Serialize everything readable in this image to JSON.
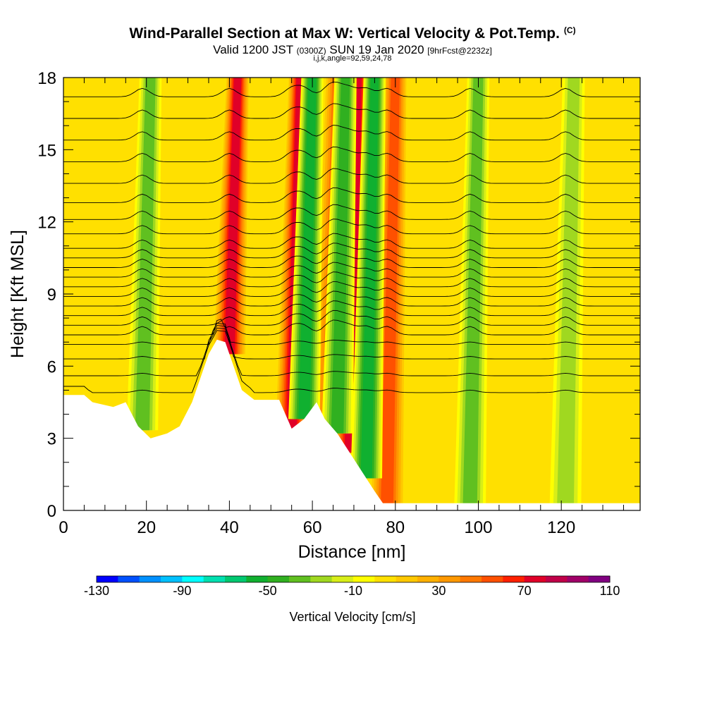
{
  "header": {
    "title": "Wind-Parallel Section at Max W: Vertical Velocity & Pot.Temp.",
    "copyright": "(C)",
    "valid_pre": "Valid 1200 JST",
    "valid_utc": "(0300Z)",
    "valid_date": "SUN 19 Jan 2020",
    "forecast": "[9hrFcst@2232z]",
    "params": "i,j,k,angle=92,59,24,78"
  },
  "chart_data": {
    "type": "heatmap",
    "xlabel": "Distance [nm]",
    "ylabel": "Height [Kft MSL]",
    "xlim": [
      0,
      139
    ],
    "ylim": [
      0,
      18
    ],
    "x_ticks": [
      0,
      20,
      40,
      60,
      80,
      100,
      120
    ],
    "y_ticks": [
      0,
      3,
      6,
      9,
      12,
      15,
      18
    ],
    "colorbar": {
      "label": "Vertical Velocity [cm/s]",
      "min": -130,
      "max": 110,
      "step": 10,
      "tick_labels": [
        "-130",
        "-90",
        "-50",
        "-10",
        "30",
        "70",
        "110"
      ],
      "colors": [
        "#0000ff",
        "#0050ff",
        "#0090ff",
        "#00c0ff",
        "#00ffff",
        "#00e0b0",
        "#00c870",
        "#10b030",
        "#30b020",
        "#60c020",
        "#a0d820",
        "#d8ee18",
        "#ffff00",
        "#ffe000",
        "#ffc800",
        "#ffb000",
        "#ff9800",
        "#ff7800",
        "#ff5000",
        "#ff2000",
        "#e00028",
        "#c00048",
        "#a00068",
        "#800080"
      ]
    },
    "terrain_height_kft": [
      [
        0,
        4.8
      ],
      [
        5,
        4.8
      ],
      [
        7,
        4.5
      ],
      [
        12,
        4.3
      ],
      [
        15,
        4.5
      ],
      [
        18,
        3.5
      ],
      [
        21,
        3.0
      ],
      [
        25,
        3.2
      ],
      [
        28,
        3.5
      ],
      [
        31,
        4.5
      ],
      [
        33,
        5.5
      ],
      [
        35,
        6.5
      ],
      [
        37,
        7.1
      ],
      [
        39,
        7.0
      ],
      [
        41,
        6.0
      ],
      [
        43,
        5.0
      ],
      [
        46,
        4.6
      ],
      [
        52,
        4.6
      ],
      [
        55,
        3.4
      ],
      [
        58,
        3.8
      ],
      [
        61,
        4.5
      ],
      [
        63,
        3.8
      ],
      [
        66,
        3.2
      ],
      [
        69,
        2.4
      ],
      [
        72,
        1.6
      ],
      [
        75,
        0.8
      ],
      [
        77,
        0.3
      ],
      [
        139,
        0.3
      ]
    ],
    "updraft_bands": [
      {
        "name": "updraft-40nm",
        "x": 40,
        "w_max_cms": 70
      },
      {
        "name": "updraft-55nm",
        "x": 55,
        "w_max_cms": 70
      },
      {
        "name": "updraft-64nm",
        "x": 64,
        "w_max_cms": 40
      },
      {
        "name": "updraft-69nm",
        "x": 69,
        "w_max_cms": 70
      },
      {
        "name": "updraft-78nm",
        "x": 78,
        "w_max_cms": 50
      }
    ],
    "downdraft_bands": [
      {
        "name": "downdraft-19nm",
        "x": 19,
        "w_min_cms": -40
      },
      {
        "name": "downdraft-58nm",
        "x": 58,
        "w_min_cms": -60
      },
      {
        "name": "downdraft-66nm",
        "x": 66,
        "w_min_cms": -50
      },
      {
        "name": "downdraft-73nm",
        "x": 73,
        "w_min_cms": -60
      },
      {
        "name": "downdraft-98nm",
        "x": 98,
        "w_min_cms": -40
      },
      {
        "name": "downdraft-121nm",
        "x": 121,
        "w_min_cms": -30
      }
    ],
    "theta_contours_kft": [
      4.9,
      5.6,
      6.3,
      6.9,
      7.3,
      7.7,
      8.1,
      8.5,
      8.9,
      9.3,
      9.7,
      10.1,
      10.5,
      10.9,
      11.5,
      12.1,
      12.8,
      13.6,
      14.5,
      15.4,
      16.3,
      17.2
    ]
  }
}
